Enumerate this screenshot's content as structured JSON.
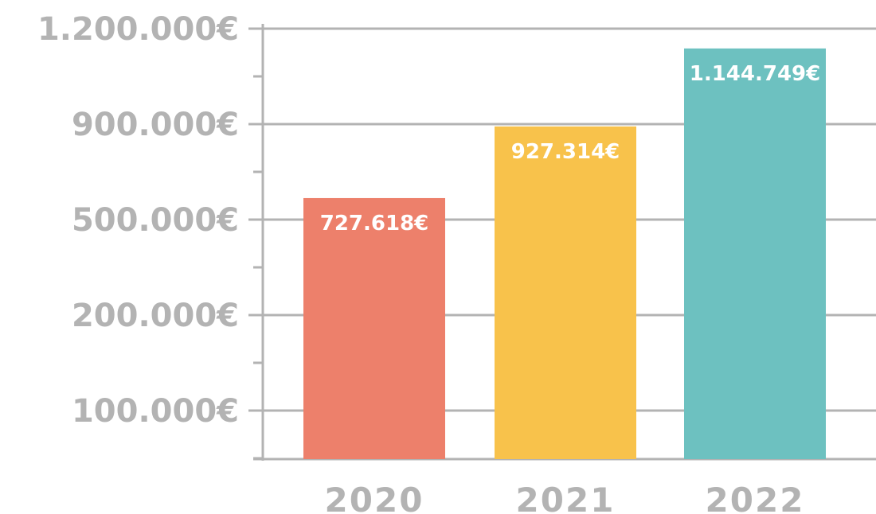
{
  "chart_data": {
    "type": "bar",
    "categories": [
      "2020",
      "2021",
      "2022"
    ],
    "values": [
      727618,
      927314,
      1144749
    ],
    "data_labels": [
      "727.618€",
      "927.314€",
      "1.144.749€"
    ],
    "colors": [
      "#ed806b",
      "#f8c24b",
      "#6dc1c0"
    ],
    "yticks": [
      {
        "label": "100.000€"
      },
      {
        "label": "200.000€"
      },
      {
        "label": "500.000€"
      },
      {
        "label": "900.000€"
      },
      {
        "label": "1.200.000€"
      }
    ],
    "grid": true,
    "grid_color": "#b3b3b3",
    "label_color": "#b3b3b3",
    "title": "",
    "xlabel": "",
    "ylabel": ""
  }
}
